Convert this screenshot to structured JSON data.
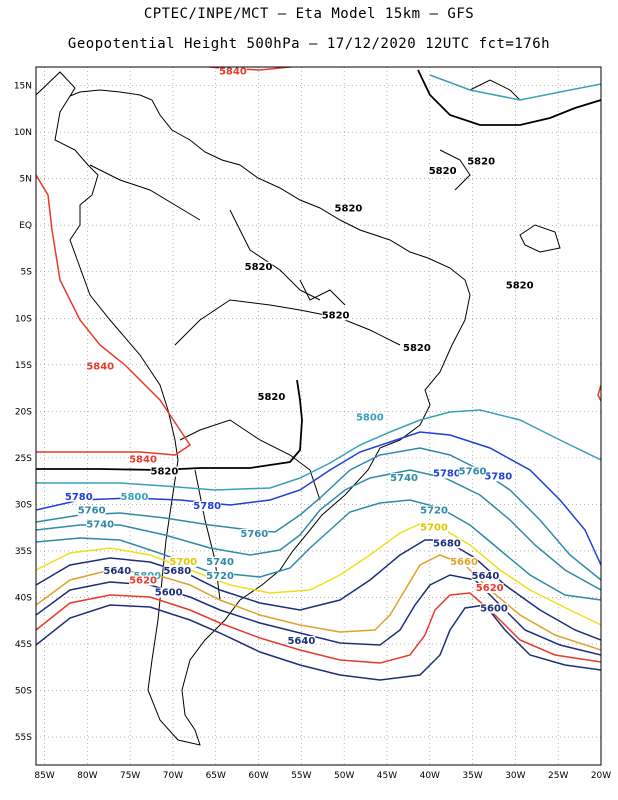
{
  "header": {
    "line1": "CPTEC/INPE/MCT –  Eta Model 15km – GFS",
    "line2": "Geopotential Height 500hPa – 17/12/2020 12UTC fct=176h"
  },
  "axes": {
    "lat_labels": [
      "15N",
      "10N",
      "5N",
      "EQ",
      "5S",
      "10S",
      "15S",
      "20S",
      "25S",
      "30S",
      "35S",
      "40S",
      "45S",
      "50S",
      "55S"
    ],
    "lat_values": [
      15,
      10,
      5,
      0,
      -5,
      -10,
      -15,
      -20,
      -25,
      -30,
      -35,
      -40,
      -45,
      -50,
      -55
    ],
    "lon_labels": [
      "85W",
      "80W",
      "75W",
      "70W",
      "65W",
      "60W",
      "55W",
      "50W",
      "45W",
      "40W",
      "35W",
      "30W",
      "25W",
      "20W"
    ],
    "lon_values": [
      -85,
      -80,
      -75,
      -70,
      -65,
      -60,
      -55,
      -50,
      -45,
      -40,
      -35,
      -30,
      -25,
      -20
    ],
    "lat_range": [
      -58,
      17
    ],
    "lon_range": [
      -86,
      -20
    ]
  },
  "contours": [
    {
      "value": "5840",
      "color": "#e83a2a",
      "labels": [
        {
          "text": "5840",
          "lon": -63,
          "lat": 16.2
        },
        {
          "text": "5840",
          "lon": -78.5,
          "lat": -15.5
        },
        {
          "text": "5840",
          "lon": -73.5,
          "lat": -25.5
        }
      ]
    },
    {
      "value": "5820",
      "color": "#000000",
      "labels": [
        {
          "text": "5820",
          "lon": -38.5,
          "lat": 5.5
        },
        {
          "text": "5820",
          "lon": -34,
          "lat": 6.5
        },
        {
          "text": "5820",
          "lon": -49.5,
          "lat": 1.5
        },
        {
          "text": "5820",
          "lon": -60,
          "lat": -4.8
        },
        {
          "text": "5820",
          "lon": -51,
          "lat": -10
        },
        {
          "text": "5820",
          "lon": -41.5,
          "lat": -13.5
        },
        {
          "text": "5820",
          "lon": -29.5,
          "lat": -6.8
        },
        {
          "text": "5820",
          "lon": -58.5,
          "lat": -18.8
        },
        {
          "text": "5820",
          "lon": -71,
          "lat": -26.8
        }
      ]
    },
    {
      "value": "5800",
      "color": "#3aa0b8",
      "labels": [
        {
          "text": "5800",
          "lon": -47,
          "lat": -21
        },
        {
          "text": "5800",
          "lon": -74.5,
          "lat": -29.5
        },
        {
          "text": "5800",
          "lon": -73,
          "lat": -38
        }
      ]
    },
    {
      "value": "5780",
      "color": "#1f3fd6",
      "labels": [
        {
          "text": "5780",
          "lon": -81,
          "lat": -29.5
        },
        {
          "text": "5780",
          "lon": -66,
          "lat": -30.5
        },
        {
          "text": "5780",
          "lon": -38,
          "lat": -27
        },
        {
          "text": "5780",
          "lon": -32,
          "lat": -27.3
        }
      ]
    },
    {
      "value": "5760",
      "color": "#2f8aa8",
      "labels": [
        {
          "text": "5760",
          "lon": -79.5,
          "lat": -31
        },
        {
          "text": "5760",
          "lon": -60.5,
          "lat": -33.5
        },
        {
          "text": "5760",
          "lon": -35,
          "lat": -26.8
        }
      ]
    },
    {
      "value": "5740",
      "color": "#2f8aa8",
      "labels": [
        {
          "text": "5740",
          "lon": -78.5,
          "lat": -32.5
        },
        {
          "text": "5740",
          "lon": -64.5,
          "lat": -36.5
        },
        {
          "text": "5740",
          "lon": -43,
          "lat": -27.5
        }
      ]
    },
    {
      "value": "5720",
      "color": "#2f8aa8",
      "labels": [
        {
          "text": "5720",
          "lon": -64.5,
          "lat": -38
        },
        {
          "text": "5720",
          "lon": -39.5,
          "lat": -31
        }
      ]
    },
    {
      "value": "5700",
      "color": "#f0e01a",
      "labels": [
        {
          "text": "5700",
          "lon": -68.8,
          "lat": -36.5
        },
        {
          "text": "5700",
          "lon": -39.5,
          "lat": -32.8
        }
      ]
    },
    {
      "value": "5680",
      "color": "#1e2f7a",
      "labels": [
        {
          "text": "5680",
          "lon": -69.5,
          "lat": -37.5
        },
        {
          "text": "5680",
          "lon": -38,
          "lat": -34.5
        }
      ]
    },
    {
      "value": "5660",
      "color": "#e0a22a",
      "labels": [
        {
          "text": "5660",
          "lon": -36,
          "lat": -36.5
        }
      ]
    },
    {
      "value": "5640",
      "color": "#1e2f7a",
      "labels": [
        {
          "text": "5640",
          "lon": -76.5,
          "lat": -37.5
        },
        {
          "text": "5640",
          "lon": -55,
          "lat": -45
        },
        {
          "text": "5640",
          "lon": -33.5,
          "lat": -38
        }
      ]
    },
    {
      "value": "5620",
      "color": "#e83a2a",
      "labels": [
        {
          "text": "5620",
          "lon": -73.5,
          "lat": -38.5
        },
        {
          "text": "5620",
          "lon": -33,
          "lat": -39.3
        }
      ]
    },
    {
      "value": "5600",
      "color": "#1e2f7a",
      "labels": [
        {
          "text": "5600",
          "lon": -70.5,
          "lat": -39.8
        },
        {
          "text": "5600",
          "lon": -32.5,
          "lat": -41.5
        }
      ]
    }
  ]
}
